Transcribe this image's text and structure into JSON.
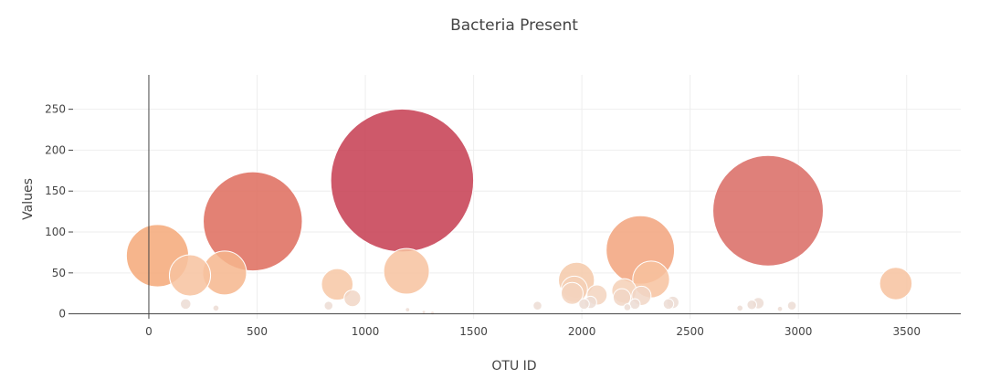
{
  "chart_data": {
    "type": "scatter",
    "title": "Bacteria Present",
    "xlabel": "OTU ID",
    "ylabel": "Values",
    "xlim": [
      -350,
      3750
    ],
    "ylim": [
      -6,
      292
    ],
    "x_ticks": [
      0,
      500,
      1000,
      1500,
      2000,
      2500,
      3000,
      3500
    ],
    "y_ticks": [
      0,
      50,
      100,
      150,
      200,
      250
    ],
    "grid": true,
    "legend": "none",
    "points": [
      {
        "x": 40,
        "y": 71,
        "size": 71,
        "color": "#f4a878"
      },
      {
        "x": 190,
        "y": 47,
        "size": 47,
        "color": "#f7c29f"
      },
      {
        "x": 350,
        "y": 50,
        "size": 50,
        "color": "#f6b68d"
      },
      {
        "x": 480,
        "y": 113,
        "size": 113,
        "color": "#de6b5c"
      },
      {
        "x": 170,
        "y": 12,
        "size": 12,
        "color": "#ecdcd3"
      },
      {
        "x": 310,
        "y": 7,
        "size": 7,
        "color": "#ecdcd3"
      },
      {
        "x": 830,
        "y": 10,
        "size": 10,
        "color": "#ecdcd3"
      },
      {
        "x": 870,
        "y": 36,
        "size": 36,
        "color": "#f7c7a5"
      },
      {
        "x": 940,
        "y": 19,
        "size": 19,
        "color": "#f1d6c5"
      },
      {
        "x": 1170,
        "y": 163,
        "size": 163,
        "color": "#c53c50"
      },
      {
        "x": 1190,
        "y": 52,
        "size": 52,
        "color": "#f7c29f"
      },
      {
        "x": 1195,
        "y": 5,
        "size": 5,
        "color": "#ecdcd3"
      },
      {
        "x": 1270,
        "y": 2,
        "size": 2,
        "color": "#ecdcd3"
      },
      {
        "x": 1310,
        "y": 1,
        "size": 1,
        "color": "#ecdcd3"
      },
      {
        "x": 1795,
        "y": 10,
        "size": 10,
        "color": "#ecdcd3"
      },
      {
        "x": 1975,
        "y": 41,
        "size": 41,
        "color": "#f5c9a9"
      },
      {
        "x": 1965,
        "y": 30,
        "size": 30,
        "color": "#f5d0b6"
      },
      {
        "x": 1955,
        "y": 25,
        "size": 25,
        "color": "#f3d3be"
      },
      {
        "x": 2010,
        "y": 12,
        "size": 12,
        "color": "#ecdcd3"
      },
      {
        "x": 2040,
        "y": 14,
        "size": 14,
        "color": "#ecdcd3"
      },
      {
        "x": 2070,
        "y": 23,
        "size": 23,
        "color": "#f3d3be"
      },
      {
        "x": 2270,
        "y": 78,
        "size": 78,
        "color": "#f2a37d"
      },
      {
        "x": 2320,
        "y": 42,
        "size": 42,
        "color": "#f7c29f"
      },
      {
        "x": 2195,
        "y": 28,
        "size": 28,
        "color": "#f5d0b6"
      },
      {
        "x": 2185,
        "y": 20,
        "size": 20,
        "color": "#f1d6c5"
      },
      {
        "x": 2210,
        "y": 8,
        "size": 8,
        "color": "#ecdcd3"
      },
      {
        "x": 2275,
        "y": 22,
        "size": 22,
        "color": "#f1d6c5"
      },
      {
        "x": 2245,
        "y": 12,
        "size": 12,
        "color": "#ecdcd3"
      },
      {
        "x": 2400,
        "y": 12,
        "size": 12,
        "color": "#ecdcd3"
      },
      {
        "x": 2420,
        "y": 14,
        "size": 14,
        "color": "#ecdcd3"
      },
      {
        "x": 2860,
        "y": 126,
        "size": 126,
        "color": "#d96a63"
      },
      {
        "x": 2730,
        "y": 7,
        "size": 7,
        "color": "#ecdcd3"
      },
      {
        "x": 2785,
        "y": 11,
        "size": 11,
        "color": "#ecdcd3"
      },
      {
        "x": 2815,
        "y": 13,
        "size": 13,
        "color": "#ecdcd3"
      },
      {
        "x": 2915,
        "y": 6,
        "size": 6,
        "color": "#ecdcd3"
      },
      {
        "x": 2970,
        "y": 10,
        "size": 10,
        "color": "#ecdcd3"
      },
      {
        "x": 3450,
        "y": 37,
        "size": 37,
        "color": "#f7c29f"
      }
    ]
  }
}
